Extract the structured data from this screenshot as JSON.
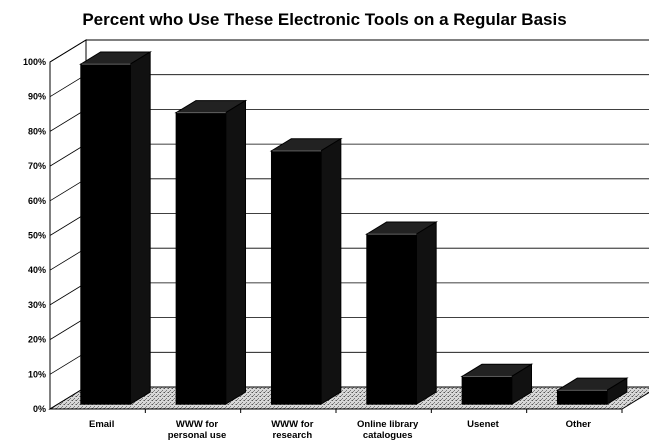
{
  "chart_data": {
    "type": "bar",
    "title": "Percent who Use These Electronic Tools on a Regular Basis",
    "categories": [
      [
        "Email"
      ],
      [
        "WWW for",
        "personal use"
      ],
      [
        "WWW for",
        "research"
      ],
      [
        "Online library",
        "catalogues"
      ],
      [
        "Usenet"
      ],
      [
        "Other"
      ]
    ],
    "values": [
      98,
      84,
      73,
      49,
      8,
      4
    ],
    "ylim": [
      0,
      100
    ],
    "yticks": [
      "0%",
      "10%",
      "20%",
      "30%",
      "40%",
      "50%",
      "60%",
      "70%",
      "80%",
      "90%",
      "100%"
    ],
    "grid": true,
    "style": "3d",
    "colors": {
      "bar": "#000000",
      "floor": "#bdbdbd",
      "grid": "#000000"
    }
  }
}
